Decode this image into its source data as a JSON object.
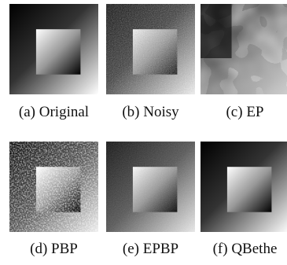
{
  "panels": [
    {
      "caption": "(a) Original"
    },
    {
      "caption": "(b) Noisy"
    },
    {
      "caption": "(c) EP"
    },
    {
      "caption": "(d) PBP"
    },
    {
      "caption": "(e) EPBP"
    },
    {
      "caption": "(f) QBethe"
    }
  ]
}
